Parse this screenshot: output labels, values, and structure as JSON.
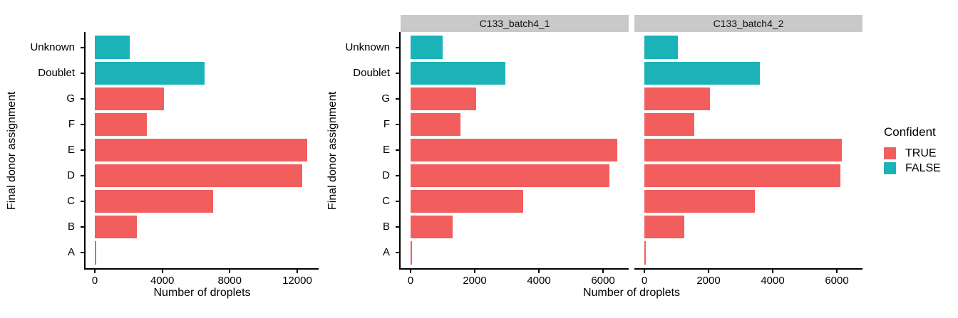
{
  "figure": {
    "background": "#ffffff",
    "colors": {
      "true": "#f25e5d",
      "false": "#1bb3b7",
      "strip_bg": "#c9c9c9",
      "axis": "#000000",
      "text": "#000000"
    },
    "legend": {
      "title": "Confident",
      "position": "right",
      "items": [
        {
          "label": "TRUE",
          "color_key": "true"
        },
        {
          "label": "FALSE",
          "color_key": "false"
        }
      ]
    }
  },
  "chart_data": [
    {
      "type": "bar",
      "orientation": "horizontal",
      "panel": "combined",
      "strip_label": null,
      "title": "",
      "xlabel": "Number of droplets",
      "ylabel": "Final donor assignment",
      "grid": false,
      "xlim": [
        0,
        13270
      ],
      "x_ticks": [
        0,
        4000,
        8000,
        12000
      ],
      "categories": [
        "Unknown",
        "Doublet",
        "G",
        "F",
        "E",
        "D",
        "C",
        "B",
        "A"
      ],
      "series": [
        {
          "name": "Number of droplets",
          "values": [
            2050,
            6500,
            4100,
            3100,
            12600,
            12300,
            7000,
            2500,
            100
          ]
        }
      ],
      "confident": [
        false,
        false,
        true,
        true,
        true,
        true,
        true,
        true,
        true
      ]
    },
    {
      "type": "bar",
      "orientation": "horizontal",
      "panel": "facet-1",
      "strip_label": "C133_batch4_1",
      "title": "",
      "xlabel": "Number of droplets",
      "ylabel": "Final donor assignment",
      "grid": false,
      "xlim": [
        0,
        6800
      ],
      "x_ticks": [
        0,
        2000,
        4000,
        6000
      ],
      "categories": [
        "Unknown",
        "Doublet",
        "G",
        "F",
        "E",
        "D",
        "C",
        "B",
        "A"
      ],
      "series": [
        {
          "name": "Number of droplets",
          "values": [
            1000,
            2950,
            2050,
            1550,
            6450,
            6200,
            3500,
            1300,
            50
          ]
        }
      ],
      "confident": [
        false,
        false,
        true,
        true,
        true,
        true,
        true,
        true,
        true
      ]
    },
    {
      "type": "bar",
      "orientation": "horizontal",
      "panel": "facet-2",
      "strip_label": "C133_batch4_2",
      "title": "",
      "xlabel": "Number of droplets",
      "ylabel": "Final donor assignment",
      "grid": false,
      "xlim": [
        0,
        6800
      ],
      "x_ticks": [
        0,
        2000,
        4000,
        6000
      ],
      "categories": [
        "Unknown",
        "Doublet",
        "G",
        "F",
        "E",
        "D",
        "C",
        "B",
        "A"
      ],
      "series": [
        {
          "name": "Number of droplets",
          "values": [
            1050,
            3600,
            2050,
            1550,
            6150,
            6100,
            3450,
            1250,
            50
          ]
        }
      ],
      "confident": [
        false,
        false,
        true,
        true,
        true,
        true,
        true,
        true,
        true
      ]
    }
  ]
}
